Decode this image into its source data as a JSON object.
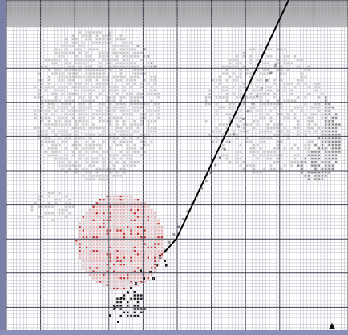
{
  "colors": {
    "page_bg": "#7b7fa8",
    "grid_minor": "#b7b9c4",
    "grid_major": "#3c3e4e",
    "top_band": "#9f9f9f",
    "symbol_light": "#c6c6c6",
    "symbol_mid": "#8a8a8a",
    "symbol_dark": "#1b1b1b",
    "symbol_pink": "#e9b4b4",
    "symbol_red": "#c03838",
    "stitch_line": "#000000"
  },
  "icons": {
    "corner_marker": "triangle-up-icon"
  },
  "marker_glyph": "▲"
}
